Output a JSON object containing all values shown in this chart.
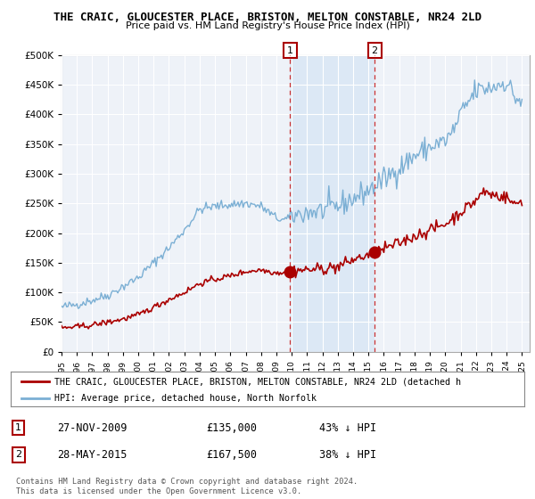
{
  "title": "THE CRAIC, GLOUCESTER PLACE, BRISTON, MELTON CONSTABLE, NR24 2LD",
  "subtitle": "Price paid vs. HM Land Registry's House Price Index (HPI)",
  "background_color": "#ffffff",
  "plot_bg_color": "#eef2f8",
  "highlight_color": "#dce8f5",
  "legend_line1": "THE CRAIC, GLOUCESTER PLACE, BRISTON, MELTON CONSTABLE, NR24 2LD (detached h",
  "legend_line2": "HPI: Average price, detached house, North Norfolk",
  "footnote": "Contains HM Land Registry data © Crown copyright and database right 2024.\nThis data is licensed under the Open Government Licence v3.0.",
  "transaction1": {
    "label": "1",
    "date": "27-NOV-2009",
    "price": "£135,000",
    "note": "43% ↓ HPI",
    "year": 2009.9
  },
  "transaction2": {
    "label": "2",
    "date": "28-MAY-2015",
    "price": "£167,500",
    "note": "38% ↓ HPI",
    "year": 2015.4
  },
  "hpi_color": "#7bafd4",
  "property_color": "#aa0000",
  "marker1_y": 135000,
  "marker2_y": 167500,
  "ylim": [
    0,
    500000
  ],
  "yticks": [
    0,
    50000,
    100000,
    150000,
    200000,
    250000,
    300000,
    350000,
    400000,
    450000,
    500000
  ],
  "xlim_start": 1995,
  "xlim_end": 2025.5
}
